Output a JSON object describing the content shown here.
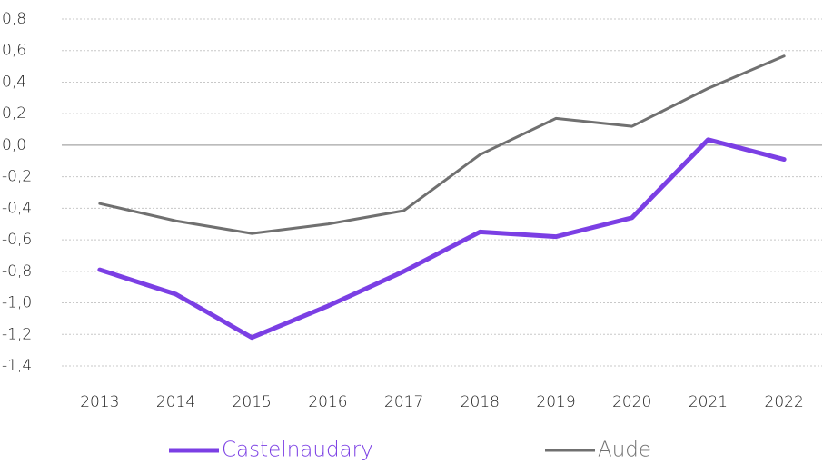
{
  "chart_data": {
    "type": "line",
    "categories": [
      "2013",
      "2014",
      "2015",
      "2016",
      "2017",
      "2018",
      "2019",
      "2020",
      "2021",
      "2022"
    ],
    "series": [
      {
        "name": "Castelnaudary",
        "color": "#7b3fe4",
        "values": [
          -0.79,
          -0.945,
          -1.22,
          -1.02,
          -0.8,
          -0.55,
          -0.58,
          -0.46,
          0.035,
          -0.09
        ]
      },
      {
        "name": "Aude",
        "color": "#707070",
        "values": [
          -0.37,
          -0.48,
          -0.56,
          -0.5,
          -0.415,
          -0.06,
          0.17,
          0.12,
          0.36,
          0.565
        ]
      }
    ],
    "ylim": [
      -1.4,
      0.8
    ],
    "yticks": [
      {
        "value": 0.8,
        "label": "0,8"
      },
      {
        "value": 0.6,
        "label": "0,6"
      },
      {
        "value": 0.4,
        "label": "0,4"
      },
      {
        "value": 0.2,
        "label": "0,2"
      },
      {
        "value": 0,
        "label": "0,0"
      },
      {
        "value": -0.2,
        "label": "-0,2"
      },
      {
        "value": -0.4,
        "label": "-0,4"
      },
      {
        "value": -0.6,
        "label": "-0,6"
      },
      {
        "value": -0.8,
        "label": "-0,8"
      },
      {
        "value": -1,
        "label": "-1,0"
      },
      {
        "value": -1.2,
        "label": "-1,2"
      },
      {
        "value": -1.4,
        "label": "-1,4"
      }
    ],
    "grid": true
  }
}
